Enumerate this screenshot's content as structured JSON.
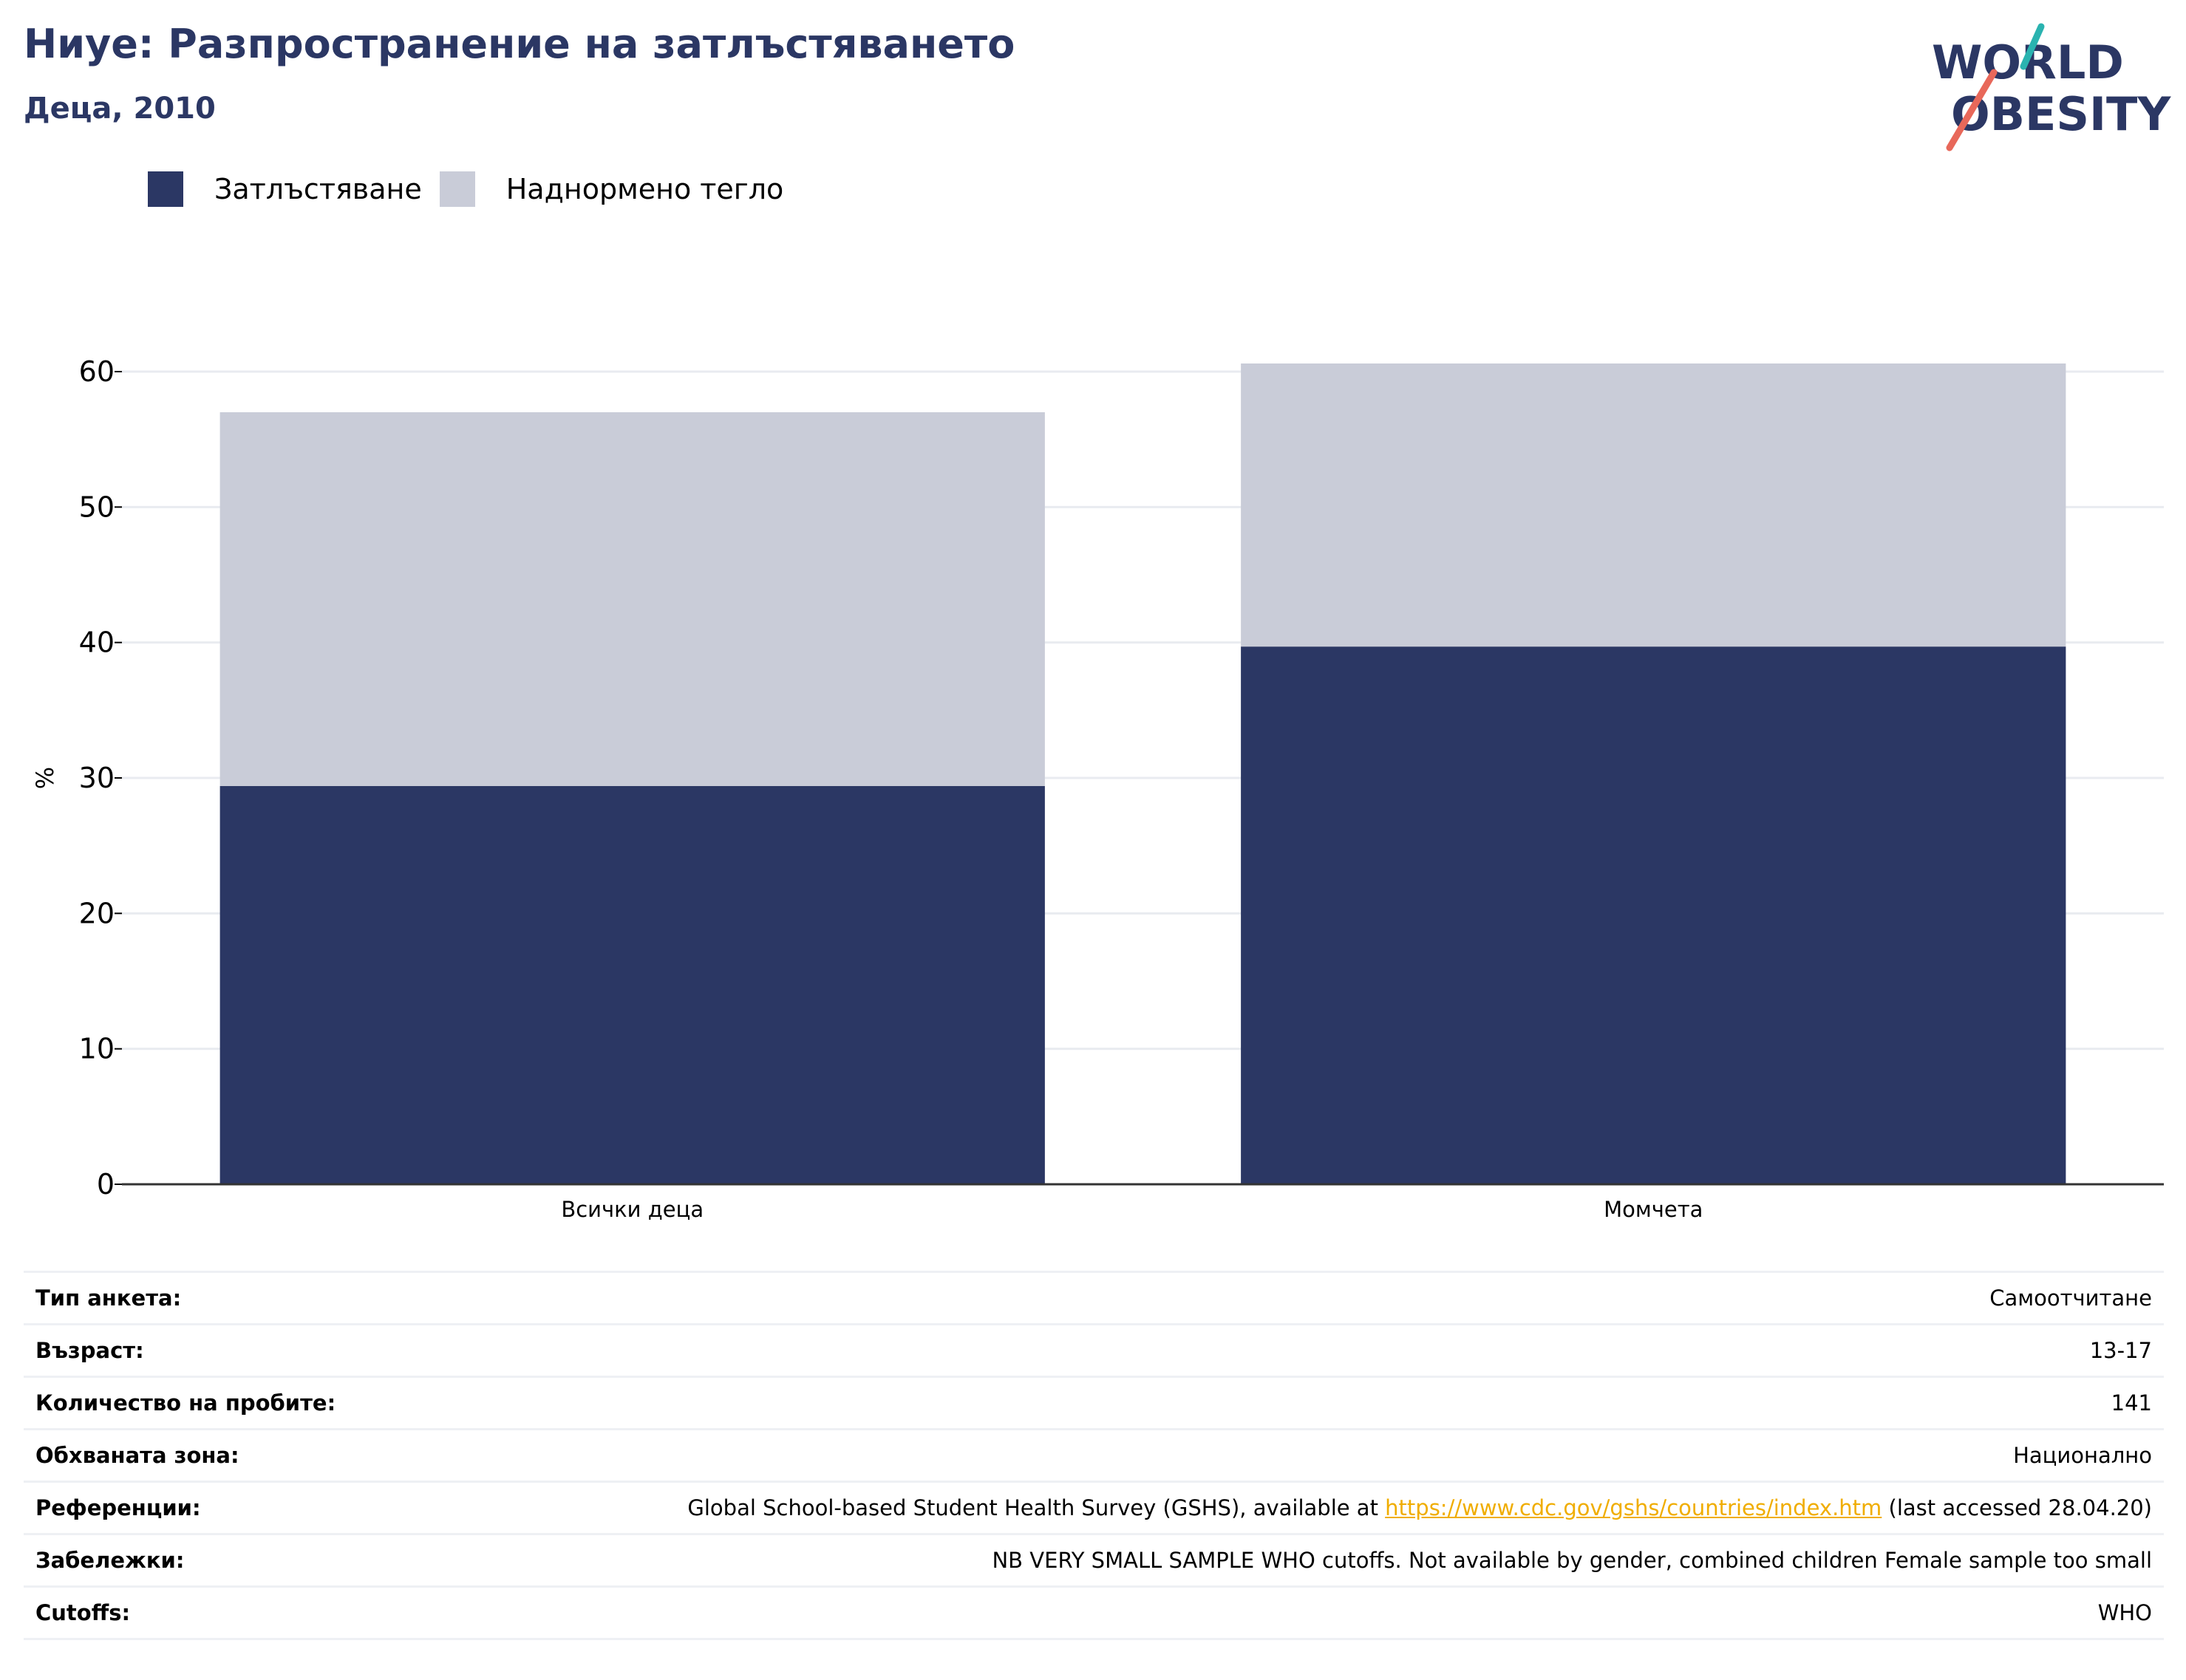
{
  "header": {
    "title": "Ниуе: Разпространение на затлъстяването",
    "subtitle": "Деца, 2010"
  },
  "logo": {
    "line1": "WORLD",
    "line2": "OBESITY",
    "colors": {
      "text": "#2b3764",
      "teal": "#2ab3b0",
      "coral": "#e8685a"
    }
  },
  "legend": [
    {
      "label": "Затлъстяване",
      "color": "#2b3764"
    },
    {
      "label": "Наднормено тегло",
      "color": "#c9ccd8"
    }
  ],
  "chart_data": {
    "type": "bar",
    "stacked": true,
    "categories": [
      "Всички деца",
      "Момчета"
    ],
    "series": [
      {
        "name": "Затлъстяване",
        "values": [
          29.4,
          39.7
        ],
        "color": "#2b3764"
      },
      {
        "name": "Наднормено тегло",
        "values": [
          27.6,
          20.9
        ],
        "color": "#c9ccd8"
      }
    ],
    "ylabel": "%",
    "ylim": [
      0,
      60
    ],
    "yticks": [
      "0",
      "10",
      "20",
      "30",
      "40",
      "50",
      "60"
    ],
    "grid": true
  },
  "info": {
    "survey_type": {
      "label": "Тип анкета:",
      "value": "Самоотчитане"
    },
    "age": {
      "label": "Възраст:",
      "value": "13-17"
    },
    "sample_size": {
      "label": "Количество на пробите:",
      "value": "141"
    },
    "area": {
      "label": "Обхваната зона:",
      "value": "Национално"
    },
    "references": {
      "label": "Референции:",
      "prefix": "Global School-based Student Health Survey (GSHS), available at",
      "link": "https://www.cdc.gov/gshs/countries/index.htm",
      "suffix": "(last accessed 28.04.20)"
    },
    "notes": {
      "label": "Забележки:",
      "value": "NB VERY SMALL SAMPLE WHO cutoffs. Not available by gender, combined children Female sample too small"
    },
    "cutoffs": {
      "label": "Cutoffs:",
      "value": "WHO"
    }
  }
}
